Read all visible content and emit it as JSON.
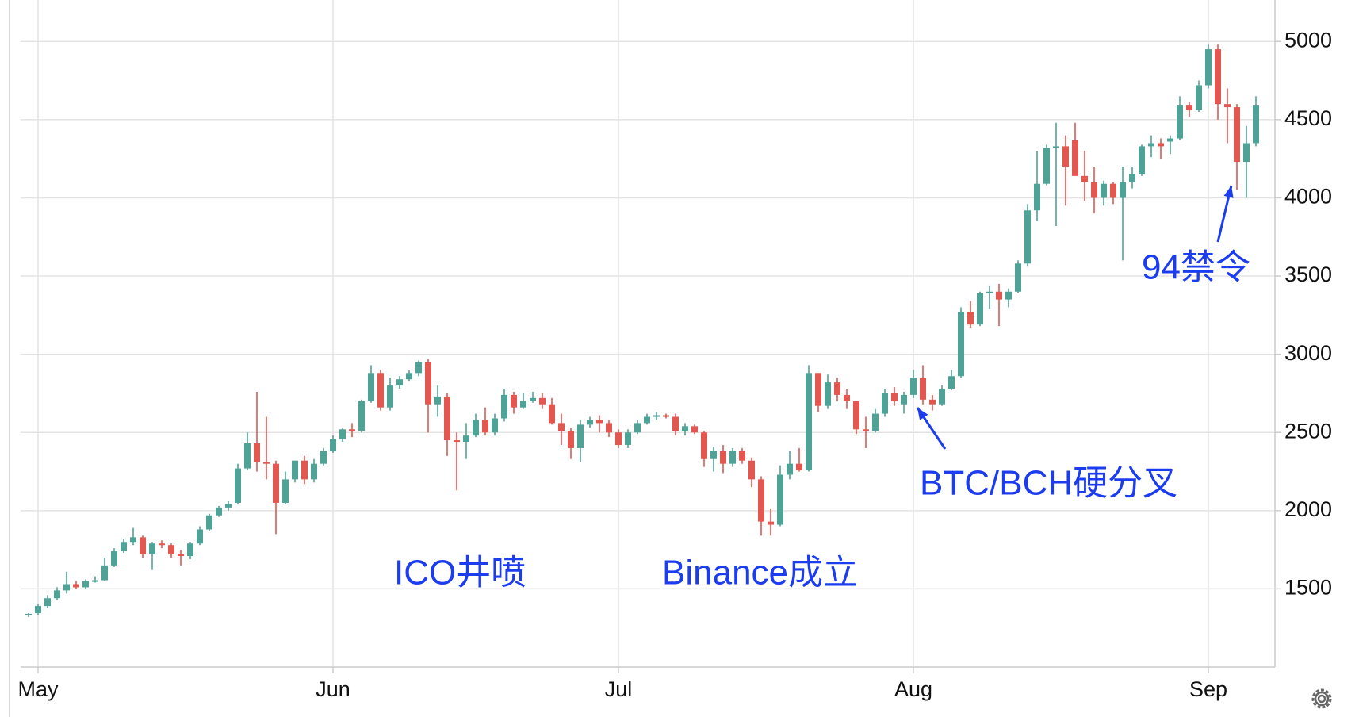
{
  "chart_data": {
    "type": "candlestick",
    "x": [
      0,
      1,
      2,
      3,
      4,
      5,
      6,
      7,
      8,
      9,
      10,
      11,
      12,
      13,
      14,
      15,
      16,
      17,
      18,
      19,
      20,
      21,
      22,
      23,
      24,
      25,
      26,
      27,
      28,
      29,
      30,
      31,
      32,
      33,
      34,
      35,
      36,
      37,
      38,
      39,
      40,
      41,
      42,
      43,
      44,
      45,
      46,
      47,
      48,
      49,
      50,
      51,
      52,
      53,
      54,
      55,
      56,
      57,
      58,
      59,
      60,
      61,
      62,
      63,
      64,
      65,
      66,
      67,
      68,
      69,
      70,
      71,
      72,
      73,
      74,
      75,
      76,
      77,
      78,
      79,
      80,
      81,
      82,
      83,
      84,
      85,
      86,
      87,
      88,
      89,
      90,
      91,
      92,
      93,
      94,
      95,
      96,
      97,
      98,
      99,
      100,
      101,
      102,
      103,
      104,
      105,
      106,
      107,
      108,
      109,
      110,
      111,
      112,
      113,
      114,
      115,
      116,
      117,
      118,
      119,
      120,
      121,
      122,
      123,
      124,
      125,
      126,
      127,
      128,
      129
    ],
    "open": [
      1330,
      1345,
      1390,
      1440,
      1490,
      1530,
      1510,
      1550,
      1555,
      1650,
      1740,
      1800,
      1830,
      1720,
      1790,
      1780,
      1720,
      1710,
      1790,
      1880,
      1970,
      2020,
      2050,
      2270,
      2430,
      2310,
      2300,
      2050,
      2200,
      2320,
      2200,
      2300,
      2380,
      2460,
      2520,
      2510,
      2700,
      2880,
      2660,
      2800,
      2840,
      2880,
      2950,
      2680,
      2730,
      2450,
      2440,
      2480,
      2580,
      2500,
      2590,
      2740,
      2660,
      2700,
      2720,
      2680,
      2560,
      2510,
      2400,
      2550,
      2580,
      2560,
      2500,
      2420,
      2500,
      2560,
      2600,
      2610,
      2600,
      2510,
      2540,
      2500,
      2330,
      2380,
      2300,
      2380,
      2320,
      2200,
      1930,
      1910,
      2230,
      2300,
      2260,
      2880,
      2670,
      2820,
      2740,
      2700,
      2520,
      2510,
      2620,
      2750,
      2680,
      2740,
      2850,
      2710,
      2680,
      2780,
      2860,
      3270,
      3190,
      3390,
      3400,
      3350,
      3400,
      3580,
      3920,
      4090,
      4320,
      4330,
      4370,
      4140,
      4100,
      4000,
      4090,
      4000,
      4100,
      4150,
      4330,
      4350,
      4360,
      4380,
      4590,
      4560,
      4720,
      4950,
      4600,
      4580,
      4230,
      4350
    ],
    "high": [
      1345,
      1400,
      1460,
      1510,
      1610,
      1550,
      1560,
      1580,
      1700,
      1760,
      1820,
      1890,
      1840,
      1800,
      1810,
      1790,
      1750,
      1800,
      1900,
      1980,
      2030,
      2060,
      2300,
      2500,
      2760,
      2600,
      2320,
      2250,
      2320,
      2350,
      2330,
      2400,
      2480,
      2530,
      2560,
      2710,
      2930,
      2900,
      2850,
      2860,
      2900,
      2960,
      2970,
      2800,
      2750,
      2500,
      2560,
      2620,
      2660,
      2620,
      2780,
      2760,
      2750,
      2760,
      2750,
      2720,
      2620,
      2530,
      2580,
      2600,
      2610,
      2580,
      2520,
      2520,
      2580,
      2620,
      2630,
      2620,
      2620,
      2560,
      2550,
      2510,
      2410,
      2420,
      2400,
      2400,
      2340,
      2220,
      2010,
      2290,
      2380,
      2400,
      2930,
      2880,
      2870,
      2850,
      2780,
      2700,
      2600,
      2650,
      2780,
      2790,
      2760,
      2900,
      2930,
      2740,
      2800,
      2900,
      3300,
      3340,
      3400,
      3440,
      3450,
      3420,
      3600,
      3960,
      4300,
      4340,
      4480,
      4400,
      4480,
      4300,
      4200,
      4110,
      4100,
      4200,
      4200,
      4340,
      4400,
      4380,
      4400,
      4650,
      4610,
      4750,
      4980,
      4980,
      4700,
      4600,
      4460,
      4650
    ],
    "low": [
      1320,
      1330,
      1380,
      1430,
      1470,
      1500,
      1500,
      1540,
      1550,
      1640,
      1730,
      1780,
      1700,
      1620,
      1760,
      1700,
      1650,
      1690,
      1780,
      1870,
      1960,
      2000,
      2040,
      2260,
      2250,
      2200,
      1850,
      2040,
      2180,
      2170,
      2180,
      2290,
      2370,
      2440,
      2470,
      2500,
      2690,
      2640,
      2640,
      2780,
      2830,
      2860,
      2500,
      2600,
      2350,
      2130,
      2330,
      2470,
      2480,
      2480,
      2570,
      2620,
      2650,
      2690,
      2650,
      2550,
      2420,
      2330,
      2310,
      2530,
      2500,
      2470,
      2400,
      2400,
      2490,
      2550,
      2580,
      2590,
      2480,
      2480,
      2490,
      2280,
      2250,
      2240,
      2280,
      2300,
      2150,
      1840,
      1840,
      1900,
      2200,
      2250,
      2250,
      2630,
      2650,
      2700,
      2650,
      2490,
      2400,
      2500,
      2600,
      2670,
      2620,
      2720,
      2680,
      2640,
      2670,
      2770,
      2850,
      3170,
      3180,
      3290,
      3180,
      3300,
      3390,
      3560,
      3850,
      4080,
      3820,
      3950,
      4150,
      3980,
      3900,
      3950,
      3960,
      3600,
      4060,
      4140,
      4260,
      4250,
      4280,
      4370,
      4520,
      4550,
      4700,
      4500,
      4350,
      4050,
      4000,
      4330
    ],
    "close": [
      1340,
      1390,
      1440,
      1490,
      1530,
      1510,
      1550,
      1555,
      1650,
      1740,
      1800,
      1830,
      1720,
      1790,
      1780,
      1720,
      1710,
      1790,
      1880,
      1970,
      2020,
      2040,
      2270,
      2430,
      2310,
      2300,
      2050,
      2200,
      2320,
      2200,
      2300,
      2380,
      2460,
      2520,
      2510,
      2700,
      2880,
      2660,
      2800,
      2840,
      2880,
      2950,
      2680,
      2730,
      2450,
      2440,
      2480,
      2580,
      2500,
      2590,
      2740,
      2660,
      2700,
      2720,
      2680,
      2560,
      2510,
      2400,
      2550,
      2580,
      2560,
      2500,
      2420,
      2500,
      2560,
      2600,
      2610,
      2600,
      2510,
      2540,
      2500,
      2330,
      2380,
      2300,
      2380,
      2320,
      2200,
      1930,
      1910,
      2230,
      2300,
      2260,
      2880,
      2670,
      2820,
      2740,
      2700,
      2520,
      2510,
      2620,
      2750,
      2700,
      2740,
      2850,
      2710,
      2680,
      2780,
      2860,
      3270,
      3190,
      3390,
      3400,
      3350,
      3400,
      3580,
      3920,
      4090,
      4320,
      4330,
      4200,
      4140,
      4100,
      4000,
      4090,
      4000,
      4100,
      4150,
      4330,
      4350,
      4330,
      4380,
      4590,
      4560,
      4720,
      4950,
      4600,
      4580,
      4230,
      4350,
      4590
    ],
    "up_color": "#4fa396",
    "down_color": "#e2574f",
    "xlim": [
      -2,
      131
    ],
    "xticks": [
      {
        "value": 1,
        "label": "May"
      },
      {
        "value": 32,
        "label": "Jun"
      },
      {
        "value": 62,
        "label": "Jul"
      },
      {
        "value": 93,
        "label": "Aug"
      },
      {
        "value": 124,
        "label": "Sep"
      }
    ],
    "ylim": [
      1000,
      5260
    ],
    "yticks": [
      1500,
      2000,
      2500,
      3000,
      3500,
      4000,
      4500,
      5000
    ],
    "grid": true,
    "annotations": [
      "ICO井喷",
      "Binance成立",
      "BTC/BCH硬分叉",
      "94禁令"
    ]
  }
}
